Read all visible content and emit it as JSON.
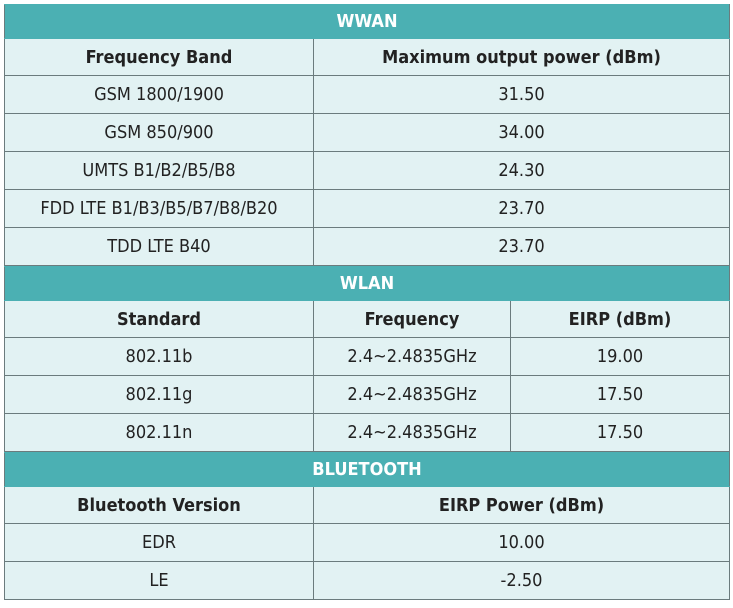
{
  "wwan": {
    "title": "WWAN",
    "columns": [
      "Frequency Band",
      "Maximum output power (dBm)"
    ],
    "rows": [
      [
        "GSM 1800/1900",
        "31.50"
      ],
      [
        "GSM 850/900",
        "34.00"
      ],
      [
        "UMTS B1/B2/B5/B8",
        "24.30"
      ],
      [
        "FDD LTE B1/B3/B5/B7/B8/B20",
        "23.70"
      ],
      [
        "TDD LTE B40",
        "23.70"
      ]
    ]
  },
  "wlan": {
    "title": "WLAN",
    "columns": [
      "Standard",
      "Frequency",
      "EIRP (dBm)"
    ],
    "rows": [
      [
        "802.11b",
        "2.4~2.4835GHz",
        "19.00"
      ],
      [
        "802.11g",
        "2.4~2.4835GHz",
        "17.50"
      ],
      [
        "802.11n",
        "2.4~2.4835GHz",
        "17.50"
      ]
    ]
  },
  "bluetooth": {
    "title": "BLUETOOTH",
    "columns": [
      "Bluetooth Version",
      "EIRP Power (dBm)"
    ],
    "rows": [
      [
        "EDR",
        "10.00"
      ],
      [
        "LE",
        "-2.50"
      ]
    ]
  }
}
